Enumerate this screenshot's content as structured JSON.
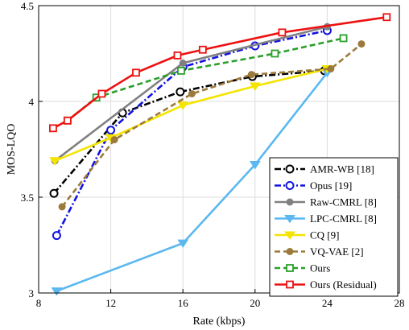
{
  "chart_data": {
    "type": "line",
    "xlabel": "Rate (kbps)",
    "ylabel": "MOS-LQO",
    "xlim": [
      8,
      28
    ],
    "ylim": [
      3,
      4.5
    ],
    "xticks": [
      "8",
      "12",
      "16",
      "20",
      "24",
      "28"
    ],
    "yticks": [
      "3",
      "3.5",
      "4",
      "4.5"
    ],
    "grid": true,
    "legend_position": "bottom-right",
    "series": [
      {
        "name": "AMR-WB [18]",
        "color": "#000000",
        "dash": "dashdot",
        "marker": "circle-open",
        "x": [
          8.85,
          12.65,
          15.85,
          19.85,
          23.85
        ],
        "y": [
          3.52,
          3.94,
          4.05,
          4.13,
          4.16
        ]
      },
      {
        "name": "Opus [19]",
        "color": "#1212e0",
        "dash": "dashdot",
        "marker": "circle-open",
        "x": [
          9,
          12,
          16,
          20,
          24
        ],
        "y": [
          3.3,
          3.85,
          4.18,
          4.29,
          4.37
        ]
      },
      {
        "name": "Raw-CMRL [8]",
        "color": "#808080",
        "dash": "solid",
        "marker": "circle-filled",
        "x": [
          8.9,
          16,
          24
        ],
        "y": [
          3.69,
          4.2,
          4.39
        ]
      },
      {
        "name": "LPC-CMRL [8]",
        "color": "#5cb8f0",
        "dash": "solid",
        "marker": "triangle-down",
        "x": [
          9,
          16,
          20,
          24
        ],
        "y": [
          3.01,
          3.26,
          3.67,
          4.15
        ]
      },
      {
        "name": "CQ [9]",
        "color": "#f4e400",
        "dash": "solid",
        "marker": "triangle-down",
        "x": [
          8.9,
          12,
          16,
          20,
          24
        ],
        "y": [
          3.69,
          3.81,
          3.98,
          4.08,
          4.17
        ]
      },
      {
        "name": "VQ-VAE [2]",
        "color": "#9c7a3c",
        "dash": "dashed",
        "marker": "circle-filled",
        "x": [
          9.3,
          12.2,
          16.5,
          19.8,
          24.2,
          25.9
        ],
        "y": [
          3.45,
          3.8,
          4.04,
          4.14,
          4.17,
          4.3
        ]
      },
      {
        "name": "Ours",
        "color": "#2aa02a",
        "dash": "dashed",
        "marker": "square-open",
        "x": [
          9.6,
          11.2,
          15.9,
          21.1,
          24.9
        ],
        "y": [
          3.9,
          4.02,
          4.16,
          4.25,
          4.33
        ]
      },
      {
        "name": "Ours (Residual)",
        "color": "#ee1111",
        "dash": "solid",
        "marker": "square-open",
        "x": [
          8.8,
          9.6,
          11.5,
          13.4,
          15.7,
          17.1,
          21.5,
          27.3
        ],
        "y": [
          3.86,
          3.9,
          4.04,
          4.15,
          4.24,
          4.27,
          4.36,
          4.44
        ]
      }
    ]
  }
}
